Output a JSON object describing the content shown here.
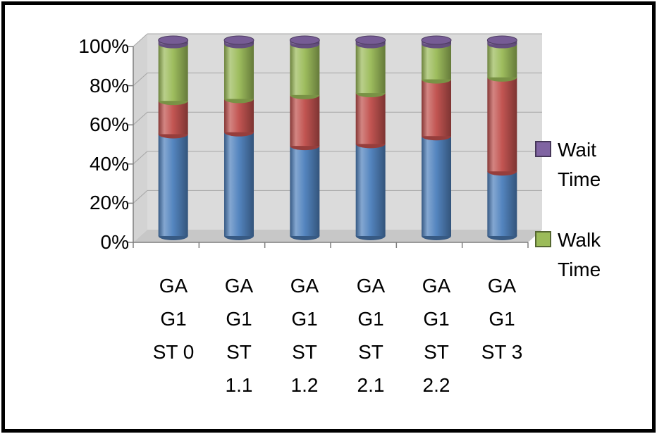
{
  "chart_data": {
    "type": "bar",
    "stacked": true,
    "stacking": "percent",
    "title": "",
    "xlabel": "",
    "ylabel": "",
    "ylim": [
      0,
      100
    ],
    "grid": true,
    "effect_3d": "cylinder",
    "y_ticks": [
      "0%",
      "20%",
      "40%",
      "60%",
      "80%",
      "100%"
    ],
    "categories": [
      "GA G1 ST 0",
      "GA G1 ST 1.1",
      "GA G1 ST 1.2",
      "GA G1 ST 2.1",
      "GA G1 ST 2.2",
      "GA G1 ST 3"
    ],
    "categories_display": [
      "GA\nG1\nST 0",
      "GA\nG1\nST\n1.1",
      "GA\nG1\nST\n1.2",
      "GA\nG1\nST\n2.1",
      "GA\nG1\nST\n2.2",
      "GA\nG1\nST 3"
    ],
    "series": [
      {
        "name": "",
        "color": "#4F81BD",
        "values": [
          52,
          53,
          46,
          47,
          51,
          33
        ]
      },
      {
        "name": "",
        "color": "#C0504D",
        "values": [
          17,
          17,
          26,
          26,
          29,
          48
        ]
      },
      {
        "name": "Walk Time",
        "color": "#9BBB59",
        "values": [
          29,
          28,
          26,
          25,
          18,
          17
        ]
      },
      {
        "name": "Wait Time",
        "color": "#8064A2",
        "values": [
          2,
          2,
          2,
          2,
          2,
          2
        ]
      }
    ],
    "legend": {
      "position": "right",
      "entries": [
        {
          "label": "Wait Time",
          "color": "#8064A2"
        },
        {
          "label": "Walk Time",
          "color": "#9BBB59"
        }
      ]
    }
  }
}
